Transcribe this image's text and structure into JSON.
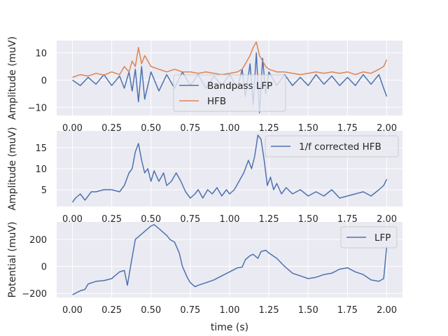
{
  "colors": {
    "blue": "#4c72b0",
    "orange": "#dd8452"
  },
  "chart_data": [
    {
      "type": "line",
      "title": "",
      "xlabel": "",
      "ylabel": "Amplitude (muV)",
      "xlim": [
        -0.1,
        2.1
      ],
      "ylim": [
        -13,
        14.5
      ],
      "xticks": [
        0,
        0.25,
        0.5,
        0.75,
        1.0,
        1.25,
        1.5,
        1.75,
        2.0
      ],
      "xtick_labels": [
        "0.00",
        "0.25",
        "0.50",
        "0.75",
        "1.00",
        "1.25",
        "1.50",
        "1.75",
        "2.00"
      ],
      "yticks": [
        -10,
        0,
        10
      ],
      "ytick_labels": [
        "−10",
        "0",
        "10"
      ],
      "grid": true,
      "legend_position": "lower-center",
      "series": [
        {
          "name": "Bandpass LFP",
          "color": "#4c72b0",
          "x": [
            0,
            0.05,
            0.1,
            0.15,
            0.2,
            0.25,
            0.3,
            0.33,
            0.36,
            0.38,
            0.4,
            0.42,
            0.44,
            0.46,
            0.5,
            0.55,
            0.6,
            0.65,
            0.7,
            0.75,
            0.8,
            0.85,
            0.9,
            0.95,
            1.0,
            1.05,
            1.08,
            1.1,
            1.13,
            1.15,
            1.17,
            1.19,
            1.21,
            1.23,
            1.25,
            1.3,
            1.35,
            1.4,
            1.45,
            1.5,
            1.55,
            1.6,
            1.65,
            1.7,
            1.75,
            1.8,
            1.85,
            1.9,
            1.95,
            1.98,
            2.0
          ],
          "y": [
            0,
            -2,
            1,
            -1.5,
            2,
            -2,
            1.5,
            -3,
            3,
            -4,
            4,
            -8,
            5,
            -7,
            3,
            -4,
            2,
            -3,
            3,
            -2,
            2,
            -3,
            1.5,
            -2,
            2,
            -3,
            4,
            -6,
            6,
            -9,
            10,
            -12,
            8,
            -5,
            3,
            -2,
            2,
            -2,
            1,
            -2,
            2,
            -1.5,
            1.5,
            -2,
            1,
            -2,
            2,
            -1.5,
            2,
            -3,
            -6
          ]
        },
        {
          "name": "HFB",
          "color": "#dd8452",
          "x": [
            0,
            0.05,
            0.1,
            0.15,
            0.2,
            0.25,
            0.3,
            0.33,
            0.36,
            0.38,
            0.4,
            0.42,
            0.44,
            0.46,
            0.5,
            0.55,
            0.6,
            0.65,
            0.7,
            0.75,
            0.8,
            0.85,
            0.9,
            0.95,
            1.0,
            1.05,
            1.08,
            1.1,
            1.13,
            1.15,
            1.17,
            1.19,
            1.21,
            1.23,
            1.25,
            1.3,
            1.35,
            1.4,
            1.45,
            1.5,
            1.55,
            1.6,
            1.65,
            1.7,
            1.75,
            1.8,
            1.85,
            1.9,
            1.95,
            1.98,
            2.0
          ],
          "y": [
            1,
            2,
            1.5,
            2.5,
            1.8,
            3,
            2,
            5,
            3,
            7,
            5,
            12,
            6,
            9,
            5,
            4,
            3,
            4,
            3,
            3,
            2.5,
            3,
            2.5,
            2,
            2.5,
            3,
            4,
            6,
            9,
            12,
            14,
            9,
            7,
            5,
            4,
            3,
            3,
            2.5,
            2,
            2.5,
            3,
            2.5,
            3,
            2.5,
            3,
            2,
            3,
            2.5,
            4,
            5,
            7.5
          ]
        }
      ]
    },
    {
      "type": "line",
      "title": "",
      "xlabel": "",
      "ylabel": "Amplitude (muV)",
      "xlim": [
        -0.1,
        2.1
      ],
      "ylim": [
        1,
        19
      ],
      "xticks": [
        0,
        0.25,
        0.5,
        0.75,
        1.0,
        1.25,
        1.5,
        1.75,
        2.0
      ],
      "xtick_labels": [
        "0.00",
        "0.25",
        "0.50",
        "0.75",
        "1.00",
        "1.25",
        "1.50",
        "1.75",
        "2.00"
      ],
      "yticks": [
        5,
        10,
        15
      ],
      "ytick_labels": [
        "5",
        "10",
        "15"
      ],
      "grid": true,
      "legend_position": "upper-right",
      "series": [
        {
          "name": "1/f corrected HFB",
          "color": "#4c72b0",
          "x": [
            0,
            0.02,
            0.05,
            0.08,
            0.1,
            0.12,
            0.15,
            0.2,
            0.25,
            0.3,
            0.33,
            0.36,
            0.38,
            0.4,
            0.42,
            0.44,
            0.46,
            0.48,
            0.5,
            0.52,
            0.55,
            0.58,
            0.6,
            0.63,
            0.66,
            0.69,
            0.72,
            0.75,
            0.78,
            0.8,
            0.83,
            0.86,
            0.89,
            0.92,
            0.95,
            0.98,
            1.0,
            1.03,
            1.06,
            1.09,
            1.12,
            1.14,
            1.16,
            1.18,
            1.2,
            1.22,
            1.24,
            1.26,
            1.28,
            1.3,
            1.33,
            1.36,
            1.4,
            1.45,
            1.5,
            1.55,
            1.6,
            1.65,
            1.7,
            1.75,
            1.8,
            1.85,
            1.9,
            1.95,
            1.98,
            2.0
          ],
          "y": [
            2,
            3,
            4,
            2.5,
            3.5,
            4.5,
            4.5,
            5,
            5,
            4.5,
            6,
            9,
            10,
            14,
            16,
            12,
            9,
            10,
            7,
            9.5,
            7,
            9,
            6,
            7,
            9,
            7,
            4.5,
            3,
            4,
            5,
            3,
            5,
            4,
            5.5,
            3.5,
            5,
            4,
            5,
            7,
            9,
            12,
            10,
            13,
            18,
            17,
            12,
            6,
            8,
            5,
            6.5,
            4,
            5.5,
            4,
            5,
            3.5,
            4.5,
            3.5,
            5,
            3,
            3.5,
            4,
            4.5,
            3.5,
            5,
            6,
            7.5
          ]
        }
      ]
    },
    {
      "type": "line",
      "title": "",
      "xlabel": "time (s)",
      "ylabel": "Potential (muV)",
      "xlim": [
        -0.1,
        2.1
      ],
      "ylim": [
        -230,
        330
      ],
      "xticks": [
        0,
        0.25,
        0.5,
        0.75,
        1.0,
        1.25,
        1.5,
        1.75,
        2.0
      ],
      "xtick_labels": [
        "0.00",
        "0.25",
        "0.50",
        "0.75",
        "1.00",
        "1.25",
        "1.50",
        "1.75",
        "2.00"
      ],
      "yticks": [
        -200,
        0,
        200
      ],
      "ytick_labels": [
        "−200",
        "0",
        "200"
      ],
      "grid": true,
      "legend_position": "upper-right",
      "series": [
        {
          "name": "LFP",
          "color": "#4c72b0",
          "x": [
            0,
            0.05,
            0.08,
            0.1,
            0.15,
            0.2,
            0.25,
            0.28,
            0.3,
            0.33,
            0.35,
            0.37,
            0.4,
            0.45,
            0.5,
            0.52,
            0.55,
            0.58,
            0.6,
            0.62,
            0.65,
            0.68,
            0.7,
            0.73,
            0.75,
            0.78,
            0.8,
            0.85,
            0.9,
            0.95,
            1.0,
            1.05,
            1.08,
            1.1,
            1.13,
            1.15,
            1.18,
            1.2,
            1.23,
            1.25,
            1.3,
            1.35,
            1.4,
            1.45,
            1.5,
            1.55,
            1.6,
            1.65,
            1.7,
            1.75,
            1.8,
            1.85,
            1.9,
            1.95,
            1.98,
            2.0
          ],
          "y": [
            -210,
            -180,
            -170,
            -130,
            -110,
            -105,
            -90,
            -60,
            -40,
            -30,
            -140,
            0,
            200,
            250,
            300,
            310,
            280,
            250,
            230,
            200,
            180,
            100,
            0,
            -80,
            -120,
            -150,
            -140,
            -120,
            -100,
            -70,
            -40,
            -10,
            -5,
            50,
            80,
            90,
            60,
            110,
            120,
            100,
            60,
            0,
            -50,
            -70,
            -90,
            -80,
            -60,
            -50,
            -20,
            -10,
            -40,
            -60,
            -100,
            -110,
            -90,
            150
          ]
        }
      ]
    }
  ]
}
